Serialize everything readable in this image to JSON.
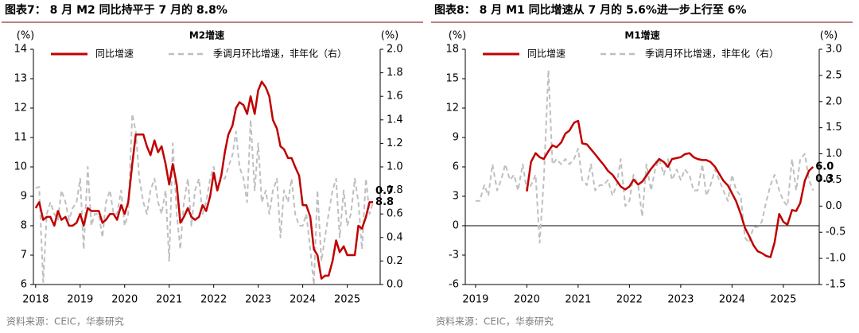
{
  "chart_data": [
    {
      "type": "line",
      "title": "图表7：  8 月 M2 同比持平于 7 月的 8.8%",
      "subtitle": "M2增速",
      "y_label": "(%)",
      "y2_label": "(%)",
      "source": "资料来源：CEIC，华泰研究",
      "xlim": [
        2017.95,
        2025.74
      ],
      "xticks": [
        2018,
        2019,
        2020,
        2021,
        2022,
        2023,
        2024,
        2025
      ],
      "ylim": [
        6,
        14
      ],
      "yticks": [
        6,
        7,
        8,
        9,
        10,
        11,
        12,
        13,
        14
      ],
      "y2lim": [
        0,
        2
      ],
      "y2ticks": [
        {
          "value": 0,
          "label": "0.0"
        },
        0.2,
        0.4,
        0.6,
        0.8,
        {
          "value": 1,
          "label": "1.0"
        },
        1.2,
        1.4,
        1.6,
        1.8,
        {
          "value": 2,
          "label": "2.0"
        }
      ],
      "zero_line": false,
      "x": [
        2018,
        2018.08,
        2018.17,
        2018.25,
        2018.33,
        2018.42,
        2018.5,
        2018.58,
        2018.67,
        2018.75,
        2018.83,
        2018.92,
        2019,
        2019.08,
        2019.17,
        2019.25,
        2019.33,
        2019.42,
        2019.5,
        2019.58,
        2019.67,
        2019.75,
        2019.83,
        2019.92,
        2020,
        2020.08,
        2020.17,
        2020.25,
        2020.33,
        2020.42,
        2020.5,
        2020.58,
        2020.67,
        2020.75,
        2020.83,
        2020.92,
        2021,
        2021.08,
        2021.17,
        2021.25,
        2021.33,
        2021.42,
        2021.5,
        2021.58,
        2021.67,
        2021.75,
        2021.83,
        2021.92,
        2022,
        2022.08,
        2022.17,
        2022.25,
        2022.33,
        2022.42,
        2022.5,
        2022.58,
        2022.67,
        2022.75,
        2022.83,
        2022.92,
        2023,
        2023.08,
        2023.17,
        2023.25,
        2023.33,
        2023.42,
        2023.5,
        2023.58,
        2023.67,
        2023.75,
        2023.83,
        2023.92,
        2024,
        2024.08,
        2024.17,
        2024.25,
        2024.33,
        2024.42,
        2024.5,
        2024.58,
        2024.67,
        2024.75,
        2024.83,
        2024.92,
        2025,
        2025.08,
        2025.17,
        2025.25,
        2025.33,
        2025.42,
        2025.5,
        2025.58
      ],
      "series": [
        {
          "name": "同比增速",
          "color": "#c00000",
          "dash": false,
          "end_label": "8.8",
          "values": [
            8.6,
            8.8,
            8.2,
            8.3,
            8.3,
            8.0,
            8.5,
            8.2,
            8.3,
            8.0,
            8.0,
            8.1,
            8.4,
            8.0,
            8.6,
            8.5,
            8.5,
            8.5,
            8.1,
            8.2,
            8.4,
            8.4,
            8.2,
            8.7,
            8.4,
            8.8,
            10.1,
            11.1,
            11.1,
            11.1,
            10.7,
            10.4,
            10.9,
            10.5,
            10.7,
            10.1,
            9.4,
            10.1,
            9.4,
            8.1,
            8.3,
            8.6,
            8.3,
            8.2,
            8.3,
            8.7,
            8.5,
            9.0,
            9.8,
            9.2,
            9.7,
            10.5,
            11.1,
            11.4,
            12.0,
            12.2,
            12.1,
            11.8,
            12.4,
            11.8,
            12.6,
            12.9,
            12.7,
            12.4,
            11.6,
            11.3,
            10.7,
            10.6,
            10.3,
            10.3,
            10.0,
            9.7,
            8.7,
            8.7,
            8.3,
            7.2,
            7.0,
            6.2,
            6.3,
            6.3,
            6.8,
            7.5,
            7.1,
            7.3,
            7.0,
            7.0,
            7.0,
            8.0,
            7.9,
            8.3,
            8.8,
            8.8
          ]
        },
        {
          "name": "季调月环比增速，非年化（右）",
          "color": "#bfbfbf",
          "dash": true,
          "axis": "y2",
          "end_label": "0.7",
          "values": [
            0.82,
            0.83,
            0.02,
            0.6,
            0.7,
            0.6,
            0.55,
            0.8,
            0.7,
            0.55,
            0.65,
            0.7,
            0.9,
            0.3,
            1.0,
            0.5,
            0.6,
            0.6,
            0.4,
            0.7,
            0.8,
            0.6,
            0.6,
            0.8,
            0.5,
            0.6,
            1.45,
            1.3,
            0.9,
            0.7,
            0.6,
            0.8,
            0.9,
            0.7,
            0.6,
            0.8,
            0.2,
            1.2,
            0.6,
            0.3,
            0.7,
            0.9,
            0.5,
            0.8,
            0.9,
            0.6,
            0.7,
            0.9,
            1.0,
            0.8,
            0.9,
            0.9,
            1.0,
            1.1,
            1.3,
            1.0,
            0.9,
            0.7,
            1.4,
            0.8,
            1.2,
            0.7,
            0.8,
            0.6,
            0.8,
            0.9,
            0.4,
            0.8,
            0.7,
            0.9,
            0.6,
            0.5,
            0.5,
            0.6,
            0.3,
            0.0,
            0.8,
            0.2,
            0.4,
            0.6,
            0.8,
            0.9,
            0.4,
            0.8,
            0.5,
            0.6,
            0.9,
            0.7,
            0.3,
            0.9,
            0.6,
            0.7
          ]
        }
      ]
    },
    {
      "type": "line",
      "title": "图表8：  8 月 M1 同比增速从 7 月的 5.6%进一步上行至 6%",
      "subtitle": "M1增速",
      "y_label": "(%)",
      "y2_label": "(%)",
      "source": "资料来源：CEIC，华泰研究",
      "xlim": [
        2018.8,
        2025.7
      ],
      "xticks": [
        2019,
        2020,
        2021,
        2022,
        2023,
        2024,
        2025
      ],
      "ylim": [
        -6,
        18
      ],
      "yticks": [
        -6,
        -3,
        0,
        3,
        6,
        9,
        12,
        15,
        18
      ],
      "y2lim": [
        -1.5,
        3
      ],
      "y2ticks": [
        -1.5,
        {
          "value": -1,
          "label": "-1.0"
        },
        -0.5,
        {
          "value": 0,
          "label": "0.0"
        },
        0.5,
        {
          "value": 1,
          "label": "1.0"
        },
        1.5,
        {
          "value": 2,
          "label": "2.0"
        },
        2.5,
        {
          "value": 3,
          "label": "3.0"
        }
      ],
      "zero_line": true,
      "series": [
        {
          "name": "同比增速",
          "color": "#c00000",
          "dash": false,
          "end_label": "6.0",
          "x": [
            2020,
            2020.08,
            2020.17,
            2020.25,
            2020.33,
            2020.42,
            2020.5,
            2020.58,
            2020.67,
            2020.75,
            2020.83,
            2020.92,
            2021,
            2021.08,
            2021.17,
            2021.25,
            2021.33,
            2021.42,
            2021.5,
            2021.58,
            2021.67,
            2021.75,
            2021.83,
            2021.92,
            2022,
            2022.08,
            2022.17,
            2022.25,
            2022.33,
            2022.42,
            2022.5,
            2022.58,
            2022.67,
            2022.75,
            2022.83,
            2022.92,
            2023,
            2023.08,
            2023.17,
            2023.25,
            2023.33,
            2023.42,
            2023.5,
            2023.58,
            2023.67,
            2023.75,
            2023.83,
            2023.92,
            2024,
            2024.08,
            2024.17,
            2024.25,
            2024.33,
            2024.42,
            2024.5,
            2024.58,
            2024.67,
            2024.75,
            2024.83,
            2024.92,
            2025,
            2025.08,
            2025.17,
            2025.25,
            2025.33,
            2025.42,
            2025.5,
            2025.58
          ],
          "values": [
            3.5,
            6.5,
            7.4,
            7.0,
            6.8,
            7.6,
            8.2,
            8.0,
            8.5,
            9.4,
            9.7,
            10.5,
            10.7,
            8.4,
            8.3,
            7.8,
            7.3,
            6.7,
            6.2,
            5.6,
            5.2,
            4.6,
            4.0,
            3.7,
            4.0,
            4.7,
            4.2,
            4.5,
            5.1,
            5.8,
            6.3,
            6.8,
            6.5,
            6.0,
            6.8,
            6.9,
            7.0,
            7.3,
            7.4,
            7.0,
            6.8,
            6.7,
            6.7,
            6.5,
            6.0,
            5.3,
            4.6,
            4.1,
            3.3,
            2.5,
            1.2,
            -0.2,
            -1.0,
            -2.0,
            -2.6,
            -2.8,
            -3.1,
            -3.2,
            -1.7,
            1.2,
            0.4,
            0.1,
            1.6,
            1.5,
            2.3,
            4.6,
            5.6,
            6.0
          ]
        },
        {
          "name": "季调月环比增速，非年化（右）",
          "color": "#bfbfbf",
          "dash": true,
          "axis": "y2",
          "end_label": "0.3",
          "x": [
            2019,
            2019.08,
            2019.17,
            2019.25,
            2019.33,
            2019.42,
            2019.5,
            2019.58,
            2019.67,
            2019.75,
            2019.83,
            2019.92,
            2020,
            2020.08,
            2020.17,
            2020.25,
            2020.33,
            2020.42,
            2020.5,
            2020.58,
            2020.67,
            2020.75,
            2020.83,
            2020.92,
            2021,
            2021.08,
            2021.17,
            2021.25,
            2021.33,
            2021.42,
            2021.5,
            2021.58,
            2021.67,
            2021.75,
            2021.83,
            2021.92,
            2022,
            2022.08,
            2022.17,
            2022.25,
            2022.33,
            2022.42,
            2022.5,
            2022.58,
            2022.67,
            2022.75,
            2022.83,
            2022.92,
            2023,
            2023.08,
            2023.17,
            2023.25,
            2023.33,
            2023.42,
            2023.5,
            2023.58,
            2023.67,
            2023.75,
            2023.83,
            2023.92,
            2024,
            2024.08,
            2024.17,
            2024.25,
            2024.33,
            2024.42,
            2024.5,
            2024.58,
            2024.67,
            2024.75,
            2024.83,
            2024.92,
            2025,
            2025.08,
            2025.17,
            2025.25,
            2025.33,
            2025.42,
            2025.5,
            2025.58
          ],
          "values": [
            0.1,
            0.1,
            0.4,
            0.2,
            0.8,
            0.3,
            0.5,
            0.8,
            0.5,
            0.6,
            0.3,
            0.8,
            0.3,
            0.4,
            0.6,
            -0.7,
            0.5,
            2.6,
            0.8,
            0.9,
            0.8,
            0.9,
            0.8,
            0.9,
            1.1,
            0.5,
            0.4,
            0.8,
            0.3,
            0.4,
            0.4,
            0.5,
            0.2,
            0.4,
            0.9,
            0.0,
            0.1,
            0.6,
            0.4,
            -0.2,
            0.8,
            0.3,
            0.7,
            0.9,
            0.6,
            0.9,
            0.5,
            0.7,
            0.5,
            0.7,
            0.6,
            0.3,
            0.3,
            0.8,
            0.2,
            0.4,
            0.7,
            0.5,
            0.3,
            0.1,
            0.6,
            0.3,
            0.2,
            -0.6,
            -0.7,
            -0.4,
            -0.4,
            -0.3,
            0.1,
            0.4,
            0.6,
            0.3,
            0.1,
            0.0,
            0.9,
            0.3,
            0.9,
            1.0,
            0.5,
            0.3
          ]
        }
      ]
    }
  ]
}
